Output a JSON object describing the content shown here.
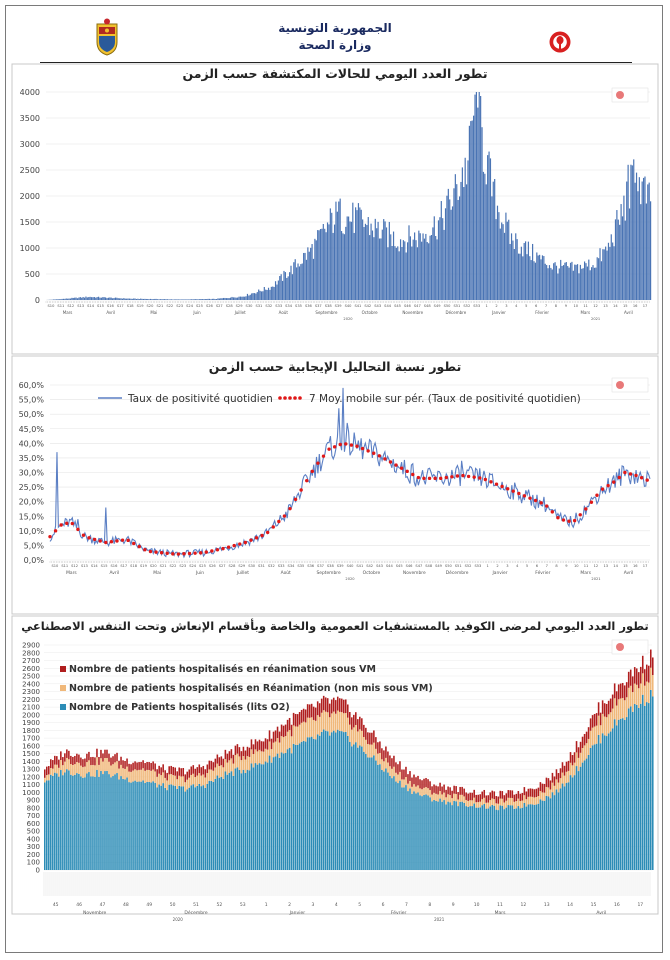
{
  "header": {
    "republic": "الجمهورية التونسية",
    "ministry": "وزارة الصحة"
  },
  "colors": {
    "bar_blue": "#4a74b4",
    "line_blue": "#5b7fc4",
    "dot_red": "#e01818",
    "icu_vm": "#b01e1e",
    "icu_nonvm": "#f0b87a",
    "o2": "#2c8cb6",
    "title_text": "#222222"
  },
  "chart_data": [
    {
      "type": "bar",
      "title": "تطور العدد اليومي للحالات المكتشفة حسب الزمن",
      "ylim": [
        0,
        4000
      ],
      "yticks": [
        0,
        500,
        1000,
        1500,
        2000,
        2500,
        3000,
        3500,
        4000
      ],
      "month_labels": [
        "Mars",
        "Avril",
        "Mai",
        "Juin",
        "Juillet",
        "Août",
        "Septembre",
        "Octobre",
        "Novembre",
        "Décembre",
        "Janvier",
        "Février",
        "Mars",
        "Avril"
      ],
      "week_labels": [
        "S10",
        "S11",
        "S12",
        "S13",
        "S14",
        "S15",
        "S16",
        "S17",
        "S18",
        "S19",
        "S20",
        "S21",
        "S22",
        "S23",
        "S24",
        "S25",
        "S26",
        "S27",
        "S28",
        "S29",
        "S30",
        "S31",
        "S32",
        "S33",
        "S34",
        "S35",
        "S36",
        "S37",
        "S38",
        "S39",
        "S40",
        "S41",
        "S42",
        "S43",
        "S44",
        "S45",
        "S46",
        "S47",
        "S48",
        "S49",
        "S50",
        "S51",
        "S52",
        "S53",
        "1",
        "2",
        "3",
        "4",
        "5",
        "6",
        "7",
        "8",
        "9",
        "10",
        "11",
        "12",
        "13",
        "14",
        "15",
        "16",
        "17"
      ],
      "year_labels": [
        "2020",
        "2021"
      ],
      "grid": true,
      "anchors": [
        [
          0,
          0
        ],
        [
          14,
          25
        ],
        [
          30,
          60
        ],
        [
          60,
          25
        ],
        [
          95,
          10
        ],
        [
          120,
          20
        ],
        [
          140,
          70
        ],
        [
          160,
          250
        ],
        [
          175,
          600
        ],
        [
          190,
          1000
        ],
        [
          205,
          1600
        ],
        [
          220,
          1550
        ],
        [
          235,
          1350
        ],
        [
          250,
          1150
        ],
        [
          265,
          1200
        ],
        [
          280,
          1500
        ],
        [
          290,
          2000
        ],
        [
          300,
          2600
        ],
        [
          305,
          3900
        ],
        [
          312,
          2800
        ],
        [
          318,
          2000
        ],
        [
          330,
          1200
        ],
        [
          345,
          900
        ],
        [
          360,
          650
        ],
        [
          375,
          600
        ],
        [
          390,
          700
        ],
        [
          400,
          1000
        ],
        [
          410,
          1700
        ],
        [
          418,
          2300
        ],
        [
          425,
          2100
        ],
        [
          430,
          1800
        ]
      ],
      "spikes": [
        [
          305,
          3950
        ],
        [
          307,
          3700
        ],
        [
          301,
          3350
        ],
        [
          209,
          1950
        ],
        [
          223,
          1780
        ],
        [
          296,
          2550
        ],
        [
          414,
          2600
        ],
        [
          420,
          2450
        ]
      ]
    },
    {
      "type": "line",
      "title": "تطور نسبة التحاليل الإيجابية حسب الزمن",
      "ylim": [
        0,
        60
      ],
      "yticks": [
        "0,0%",
        "5,0%",
        "10,0%",
        "15,0%",
        "20,0%",
        "25,0%",
        "30,0%",
        "35,0%",
        "40,0%",
        "45,0%",
        "50,0%",
        "55,0%",
        "60,0%"
      ],
      "legend": [
        "Taux de positivité quotidien",
        "7 Moy. mobile sur pér. (Taux de positivité quotidien)"
      ],
      "month_labels": [
        "Mars",
        "Avril",
        "Mai",
        "Juin",
        "Juillet",
        "Août",
        "Septembre",
        "Octobre",
        "Novembre",
        "Décembre",
        "Janvier",
        "Février",
        "Mars",
        "Avril"
      ],
      "week_labels": [
        "S10",
        "S11",
        "S12",
        "S13",
        "S14",
        "S15",
        "S16",
        "S17",
        "S18",
        "S19",
        "S20",
        "S21",
        "S22",
        "S23",
        "S24",
        "S25",
        "S26",
        "S27",
        "S28",
        "S29",
        "S30",
        "S31",
        "S32",
        "S33",
        "S34",
        "S35",
        "S36",
        "S37",
        "S38",
        "S39",
        "S40",
        "S41",
        "S42",
        "S43",
        "S44",
        "S45",
        "S46",
        "S47",
        "S48",
        "S49",
        "S50",
        "S51",
        "S52",
        "S53",
        "1",
        "2",
        "3",
        "4",
        "5",
        "6",
        "7",
        "8",
        "9",
        "10",
        "11",
        "12",
        "13",
        "14",
        "15",
        "16",
        "17"
      ],
      "year_labels": [
        "2020",
        "2021"
      ],
      "grid": true,
      "anchors": [
        [
          0,
          8
        ],
        [
          8,
          12
        ],
        [
          15,
          13
        ],
        [
          25,
          8
        ],
        [
          40,
          6
        ],
        [
          55,
          7
        ],
        [
          70,
          3
        ],
        [
          90,
          2
        ],
        [
          110,
          2.5
        ],
        [
          125,
          4
        ],
        [
          140,
          6
        ],
        [
          155,
          9
        ],
        [
          170,
          16
        ],
        [
          180,
          24
        ],
        [
          190,
          32
        ],
        [
          200,
          38
        ],
        [
          210,
          40
        ],
        [
          220,
          39
        ],
        [
          235,
          36
        ],
        [
          250,
          32
        ],
        [
          265,
          28
        ],
        [
          280,
          28
        ],
        [
          295,
          29
        ],
        [
          310,
          28
        ],
        [
          325,
          25
        ],
        [
          340,
          22
        ],
        [
          355,
          19
        ],
        [
          365,
          14
        ],
        [
          375,
          13
        ],
        [
          385,
          18
        ],
        [
          395,
          24
        ],
        [
          405,
          27
        ],
        [
          412,
          30
        ],
        [
          420,
          29
        ],
        [
          430,
          27
        ]
      ],
      "spikes": [
        [
          5,
          37
        ],
        [
          40,
          18
        ],
        [
          210,
          59
        ],
        [
          207,
          52
        ],
        [
          213,
          47
        ],
        [
          260,
          33
        ],
        [
          295,
          34
        ],
        [
          20,
          14
        ]
      ]
    },
    {
      "type": "bar",
      "stacked": true,
      "title": "تطور العدد اليومي لمرضى الكوفيد بالمستشفيات العمومية والخاصة وبأقسام الإنعاش وتحت التنفس الاصطناعي",
      "ylim": [
        0,
        2900
      ],
      "yticks": [
        0,
        100,
        200,
        300,
        400,
        500,
        600,
        700,
        800,
        900,
        1000,
        1100,
        1200,
        1300,
        1400,
        1500,
        1600,
        1700,
        1800,
        1900,
        2000,
        2100,
        2200,
        2300,
        2400,
        2500,
        2600,
        2700,
        2800,
        2900
      ],
      "series": [
        {
          "name": "Nombre de Patients hospitalisés (lits O2)"
        },
        {
          "name": "Nombre de patients hospitalisés en Réanimation (non mis sous VM)"
        },
        {
          "name": "Nombre de patients  hospitalisés en réanimation  sous VM"
        }
      ],
      "month_labels": [
        "Novembre",
        "Décembre",
        "Janvier",
        "Février",
        "Mars",
        "Avril"
      ],
      "week_labels": [
        "45",
        "46",
        "47",
        "48",
        "49",
        "50",
        "51",
        "52",
        "53",
        "1",
        "2",
        "3",
        "4",
        "5",
        "6",
        "7",
        "8",
        "9",
        "10",
        "11",
        "12",
        "13",
        "14",
        "15",
        "16",
        "17"
      ],
      "year_labels": [
        "2020",
        "2021"
      ],
      "grid": true,
      "anchors_total": [
        [
          0,
          1320
        ],
        [
          10,
          1530
        ],
        [
          20,
          1480
        ],
        [
          30,
          1520
        ],
        [
          40,
          1420
        ],
        [
          50,
          1400
        ],
        [
          60,
          1300
        ],
        [
          70,
          1280
        ],
        [
          80,
          1350
        ],
        [
          90,
          1500
        ],
        [
          100,
          1600
        ],
        [
          110,
          1700
        ],
        [
          120,
          1900
        ],
        [
          130,
          2050
        ],
        [
          140,
          2180
        ],
        [
          148,
          2160
        ],
        [
          155,
          2000
        ],
        [
          165,
          1700
        ],
        [
          175,
          1400
        ],
        [
          185,
          1200
        ],
        [
          195,
          1100
        ],
        [
          205,
          1050
        ],
        [
          215,
          1000
        ],
        [
          225,
          980
        ],
        [
          235,
          1000
        ],
        [
          245,
          1080
        ],
        [
          255,
          1250
        ],
        [
          265,
          1600
        ],
        [
          275,
          2050
        ],
        [
          285,
          2350
        ],
        [
          295,
          2600
        ],
        [
          303,
          2780
        ]
      ],
      "anchors_o2": [
        [
          0,
          1150
        ],
        [
          10,
          1280
        ],
        [
          20,
          1230
        ],
        [
          30,
          1250
        ],
        [
          40,
          1180
        ],
        [
          50,
          1140
        ],
        [
          60,
          1070
        ],
        [
          70,
          1050
        ],
        [
          80,
          1100
        ],
        [
          90,
          1230
        ],
        [
          100,
          1300
        ],
        [
          110,
          1400
        ],
        [
          120,
          1530
        ],
        [
          130,
          1640
        ],
        [
          140,
          1760
        ],
        [
          148,
          1750
        ],
        [
          155,
          1620
        ],
        [
          165,
          1400
        ],
        [
          175,
          1150
        ],
        [
          185,
          990
        ],
        [
          195,
          900
        ],
        [
          205,
          860
        ],
        [
          215,
          830
        ],
        [
          225,
          800
        ],
        [
          235,
          810
        ],
        [
          245,
          870
        ],
        [
          255,
          1000
        ],
        [
          265,
          1290
        ],
        [
          275,
          1650
        ],
        [
          285,
          1900
        ],
        [
          295,
          2130
        ],
        [
          303,
          2270
        ]
      ],
      "anchors_vm": [
        [
          0,
          110
        ],
        [
          60,
          100
        ],
        [
          100,
          120
        ],
        [
          140,
          180
        ],
        [
          165,
          150
        ],
        [
          200,
          100
        ],
        [
          235,
          95
        ],
        [
          265,
          140
        ],
        [
          303,
          230
        ]
      ]
    }
  ]
}
